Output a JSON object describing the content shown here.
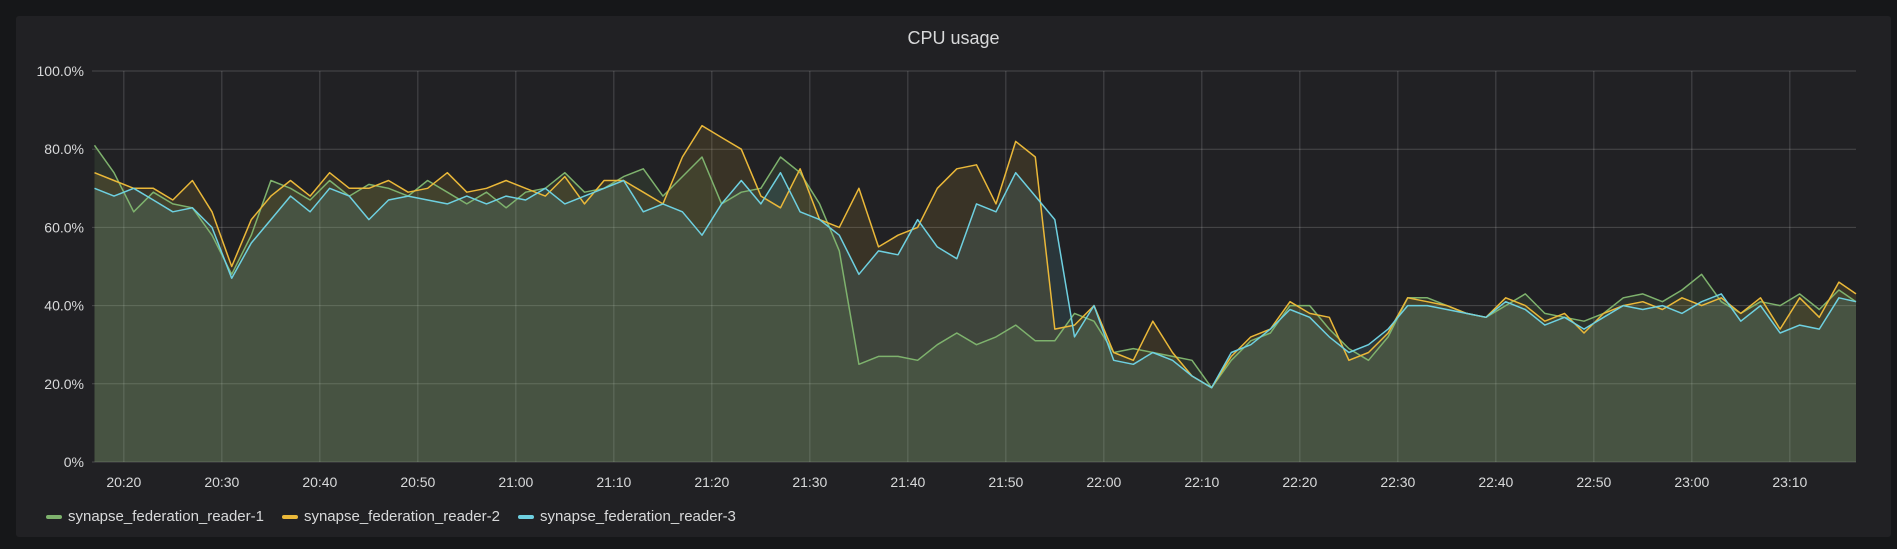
{
  "panel": {
    "title": "CPU usage"
  },
  "chart_data": {
    "type": "area",
    "title": "CPU usage",
    "xlabel": "",
    "ylabel": "",
    "ylim": [
      0,
      100
    ],
    "xlim": [
      "20:16:45",
      "23:16:45"
    ],
    "grid": true,
    "legend_position": "bottom-left",
    "y_ticks": [
      "0%",
      "20.0%",
      "40.0%",
      "60.0%",
      "80.0%",
      "100.0%"
    ],
    "x_ticks": [
      "20:20",
      "20:30",
      "20:40",
      "20:50",
      "21:00",
      "21:10",
      "21:20",
      "21:30",
      "21:40",
      "21:50",
      "22:00",
      "22:10",
      "22:20",
      "22:30",
      "22:40",
      "22:50",
      "23:00",
      "23:10"
    ],
    "x": [
      "20:17",
      "20:19",
      "20:21",
      "20:23",
      "20:25",
      "20:27",
      "20:29",
      "20:31",
      "20:33",
      "20:35",
      "20:37",
      "20:39",
      "20:41",
      "20:43",
      "20:45",
      "20:47",
      "20:49",
      "20:51",
      "20:53",
      "20:55",
      "20:57",
      "20:59",
      "21:01",
      "21:03",
      "21:05",
      "21:07",
      "21:09",
      "21:11",
      "21:13",
      "21:15",
      "21:17",
      "21:19",
      "21:21",
      "21:23",
      "21:25",
      "21:27",
      "21:29",
      "21:31",
      "21:33",
      "21:35",
      "21:37",
      "21:39",
      "21:41",
      "21:43",
      "21:45",
      "21:47",
      "21:49",
      "21:51",
      "21:53",
      "21:55",
      "21:57",
      "21:59",
      "22:01",
      "22:03",
      "22:05",
      "22:07",
      "22:09",
      "22:11",
      "22:13",
      "22:15",
      "22:17",
      "22:19",
      "22:21",
      "22:23",
      "22:25",
      "22:27",
      "22:29",
      "22:31",
      "22:33",
      "22:35",
      "22:37",
      "22:39",
      "22:41",
      "22:43",
      "22:45",
      "22:47",
      "22:49",
      "22:51",
      "22:53",
      "22:55",
      "22:57",
      "22:59",
      "23:01",
      "23:03",
      "23:05",
      "23:07",
      "23:09",
      "23:11",
      "23:13",
      "23:15",
      "23:16:45"
    ],
    "series": [
      {
        "name": "synapse_federation_reader-1",
        "color": "#7eb26d",
        "values": [
          81,
          74,
          64,
          69,
          66,
          65,
          58,
          48,
          58,
          72,
          70,
          67,
          72,
          68,
          71,
          70,
          68,
          72,
          69,
          66,
          69,
          65,
          69,
          70,
          74,
          69,
          70,
          73,
          75,
          68,
          73,
          78,
          66,
          69,
          70,
          78,
          74,
          66,
          54,
          25,
          27,
          27,
          26,
          30,
          33,
          30,
          32,
          35,
          31,
          31,
          38,
          36,
          28,
          29,
          28,
          27,
          26,
          19,
          26,
          31,
          33,
          40,
          40,
          34,
          29,
          26,
          32,
          42,
          42,
          40,
          38,
          37,
          40,
          43,
          38,
          37,
          36,
          38,
          42,
          43,
          41,
          44,
          48,
          41,
          38,
          41,
          40,
          43,
          39,
          44,
          41
        ]
      },
      {
        "name": "synapse_federation_reader-2",
        "color": "#eab839",
        "values": [
          74,
          72,
          70,
          70,
          67,
          72,
          64,
          50,
          62,
          68,
          72,
          68,
          74,
          70,
          70,
          72,
          69,
          70,
          74,
          69,
          70,
          72,
          70,
          68,
          73,
          66,
          72,
          72,
          69,
          66,
          78,
          86,
          83,
          80,
          68,
          65,
          75,
          62,
          60,
          70,
          55,
          58,
          60,
          70,
          75,
          76,
          66,
          82,
          78,
          34,
          35,
          40,
          28,
          26,
          36,
          28,
          22,
          19,
          27,
          32,
          34,
          41,
          38,
          37,
          26,
          28,
          33,
          42,
          41,
          40,
          38,
          37,
          42,
          40,
          36,
          38,
          33,
          38,
          40,
          41,
          39,
          42,
          40,
          42,
          38,
          42,
          34,
          42,
          37,
          46,
          43
        ]
      },
      {
        "name": "synapse_federation_reader-3",
        "color": "#6ed0e0",
        "values": [
          70,
          68,
          70,
          67,
          64,
          65,
          60,
          47,
          56,
          62,
          68,
          64,
          70,
          68,
          62,
          67,
          68,
          67,
          66,
          68,
          66,
          68,
          67,
          70,
          66,
          68,
          70,
          72,
          64,
          66,
          64,
          58,
          66,
          72,
          66,
          74,
          64,
          62,
          58,
          48,
          54,
          53,
          62,
          55,
          52,
          66,
          64,
          74,
          68,
          62,
          32,
          40,
          26,
          25,
          28,
          26,
          22,
          19,
          28,
          30,
          34,
          39,
          37,
          32,
          28,
          30,
          34,
          40,
          40,
          39,
          38,
          37,
          41,
          39,
          35,
          37,
          34,
          37,
          40,
          39,
          40,
          38,
          41,
          43,
          36,
          40,
          33,
          35,
          34,
          42,
          41
        ]
      }
    ]
  }
}
